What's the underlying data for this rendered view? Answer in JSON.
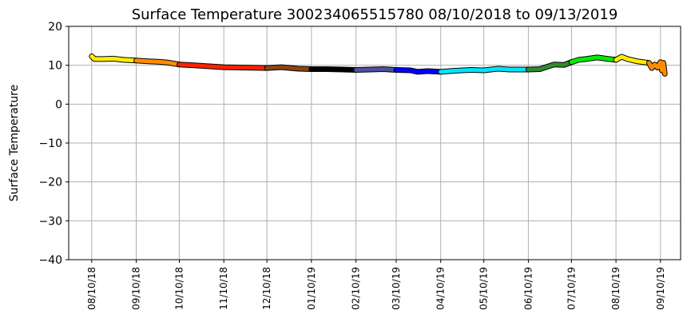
{
  "chart_data": {
    "type": "line",
    "title": "Surface Temperature 300234065515780  08/10/2018 to 09/13/2019",
    "ylabel": "Surface Temperature",
    "xlabel": "",
    "ylim": [
      -40,
      20
    ],
    "xlim": [
      "2018-07-25",
      "2019-09-24"
    ],
    "grid": true,
    "yticks": [
      20,
      10,
      0,
      -10,
      -20,
      -30,
      -40
    ],
    "ytick_labels": [
      "20",
      "10",
      "0",
      "−10",
      "−20",
      "−30",
      "−40"
    ],
    "xticks": [
      "2018-08-10",
      "2018-09-10",
      "2018-10-10",
      "2018-11-10",
      "2018-12-10",
      "2019-01-10",
      "2019-02-10",
      "2019-03-10",
      "2019-04-10",
      "2019-05-10",
      "2019-06-10",
      "2019-07-10",
      "2019-08-10",
      "2019-09-10"
    ],
    "xtick_labels": [
      "08/10/18",
      "09/10/18",
      "10/10/18",
      "11/10/18",
      "12/10/18",
      "01/10/19",
      "02/10/19",
      "03/10/19",
      "04/10/19",
      "05/10/19",
      "06/10/19",
      "07/10/19",
      "08/10/19",
      "09/10/19"
    ],
    "series": [
      {
        "color": "#ffee00",
        "points": [
          [
            "2018-08-10",
            12.3
          ],
          [
            "2018-08-12",
            11.6
          ],
          [
            "2018-08-18",
            11.6
          ],
          [
            "2018-08-25",
            11.7
          ],
          [
            "2018-09-01",
            11.4
          ],
          [
            "2018-09-10",
            11.2
          ]
        ]
      },
      {
        "color": "#ff8c00",
        "points": [
          [
            "2018-09-10",
            11.2
          ],
          [
            "2018-09-18",
            11.0
          ],
          [
            "2018-09-25",
            10.9
          ],
          [
            "2018-10-02",
            10.7
          ],
          [
            "2018-10-10",
            10.2
          ]
        ]
      },
      {
        "color": "#ff2200",
        "points": [
          [
            "2018-10-10",
            10.2
          ],
          [
            "2018-10-20",
            10.0
          ],
          [
            "2018-11-01",
            9.7
          ],
          [
            "2018-11-10",
            9.5
          ],
          [
            "2018-11-25",
            9.4
          ],
          [
            "2018-12-10",
            9.3
          ]
        ]
      },
      {
        "color": "#8b4513",
        "points": [
          [
            "2018-12-10",
            9.3
          ],
          [
            "2018-12-20",
            9.5
          ],
          [
            "2019-01-01",
            9.1
          ],
          [
            "2019-01-10",
            9.0
          ]
        ]
      },
      {
        "color": "#000000",
        "points": [
          [
            "2019-01-10",
            9.0
          ],
          [
            "2019-01-20",
            9.0
          ],
          [
            "2019-02-01",
            8.9
          ],
          [
            "2019-02-10",
            8.8
          ]
        ]
      },
      {
        "color": "#5050a0",
        "points": [
          [
            "2019-02-10",
            8.8
          ],
          [
            "2019-02-20",
            8.9
          ],
          [
            "2019-03-01",
            9.0
          ],
          [
            "2019-03-10",
            8.8
          ]
        ]
      },
      {
        "color": "#0000ff",
        "points": [
          [
            "2019-03-10",
            8.8
          ],
          [
            "2019-03-20",
            8.7
          ],
          [
            "2019-03-25",
            8.3
          ],
          [
            "2019-04-01",
            8.5
          ],
          [
            "2019-04-10",
            8.3
          ]
        ]
      },
      {
        "color": "#00e5ff",
        "points": [
          [
            "2019-04-10",
            8.3
          ],
          [
            "2019-04-20",
            8.6
          ],
          [
            "2019-05-01",
            8.8
          ],
          [
            "2019-05-10",
            8.7
          ],
          [
            "2019-05-20",
            9.1
          ],
          [
            "2019-05-28",
            8.9
          ],
          [
            "2019-06-10",
            8.9
          ]
        ]
      },
      {
        "color": "#2e8b2e",
        "points": [
          [
            "2019-06-10",
            8.9
          ],
          [
            "2019-06-18",
            9.0
          ],
          [
            "2019-06-23",
            9.6
          ],
          [
            "2019-06-28",
            10.2
          ],
          [
            "2019-07-05",
            10.1
          ],
          [
            "2019-07-10",
            10.8
          ]
        ]
      },
      {
        "color": "#00ee00",
        "points": [
          [
            "2019-07-10",
            10.8
          ],
          [
            "2019-07-15",
            11.4
          ],
          [
            "2019-07-20",
            11.6
          ],
          [
            "2019-07-28",
            12.0
          ],
          [
            "2019-08-05",
            11.6
          ],
          [
            "2019-08-10",
            11.4
          ]
        ]
      },
      {
        "color": "#ffee00",
        "points": [
          [
            "2019-08-10",
            11.4
          ],
          [
            "2019-08-14",
            12.2
          ],
          [
            "2019-08-18",
            11.6
          ],
          [
            "2019-08-25",
            11.0
          ],
          [
            "2019-09-02",
            10.6
          ]
        ]
      },
      {
        "color": "#ff8c00",
        "points": [
          [
            "2019-09-02",
            10.6
          ],
          [
            "2019-09-04",
            9.3
          ],
          [
            "2019-09-06",
            10.2
          ],
          [
            "2019-09-08",
            9.4
          ],
          [
            "2019-09-10",
            10.8
          ],
          [
            "2019-09-11",
            8.7
          ],
          [
            "2019-09-12",
            10.6
          ],
          [
            "2019-09-13",
            7.8
          ]
        ]
      }
    ]
  }
}
